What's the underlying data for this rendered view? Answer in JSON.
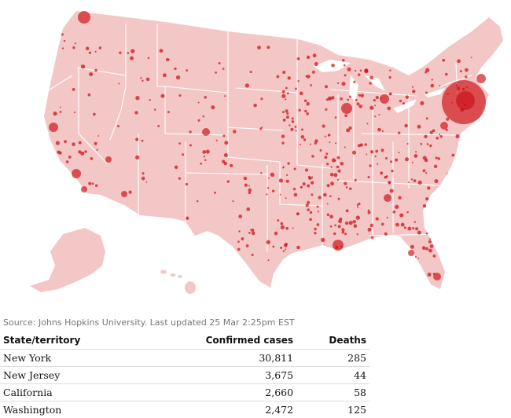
{
  "colors": {
    "land": "#f4c7c7",
    "border": "#ffffff",
    "bubble": "#cc0a11"
  },
  "map": {
    "type": "bubble-map",
    "region": "United States"
  },
  "source_text": "Source: Johns Hopkins University. Last updated 25 Mar 2:25pm EST",
  "table": {
    "headers": {
      "state": "State/territory",
      "cases": "Confirmed cases",
      "deaths": "Deaths"
    },
    "rows": [
      {
        "state": "New York",
        "cases": "30,811",
        "deaths": "285"
      },
      {
        "state": "New Jersey",
        "cases": "3,675",
        "deaths": "44"
      },
      {
        "state": "California",
        "cases": "2,660",
        "deaths": "58"
      },
      {
        "state": "Washington",
        "cases": "2,472",
        "deaths": "125"
      }
    ]
  }
}
